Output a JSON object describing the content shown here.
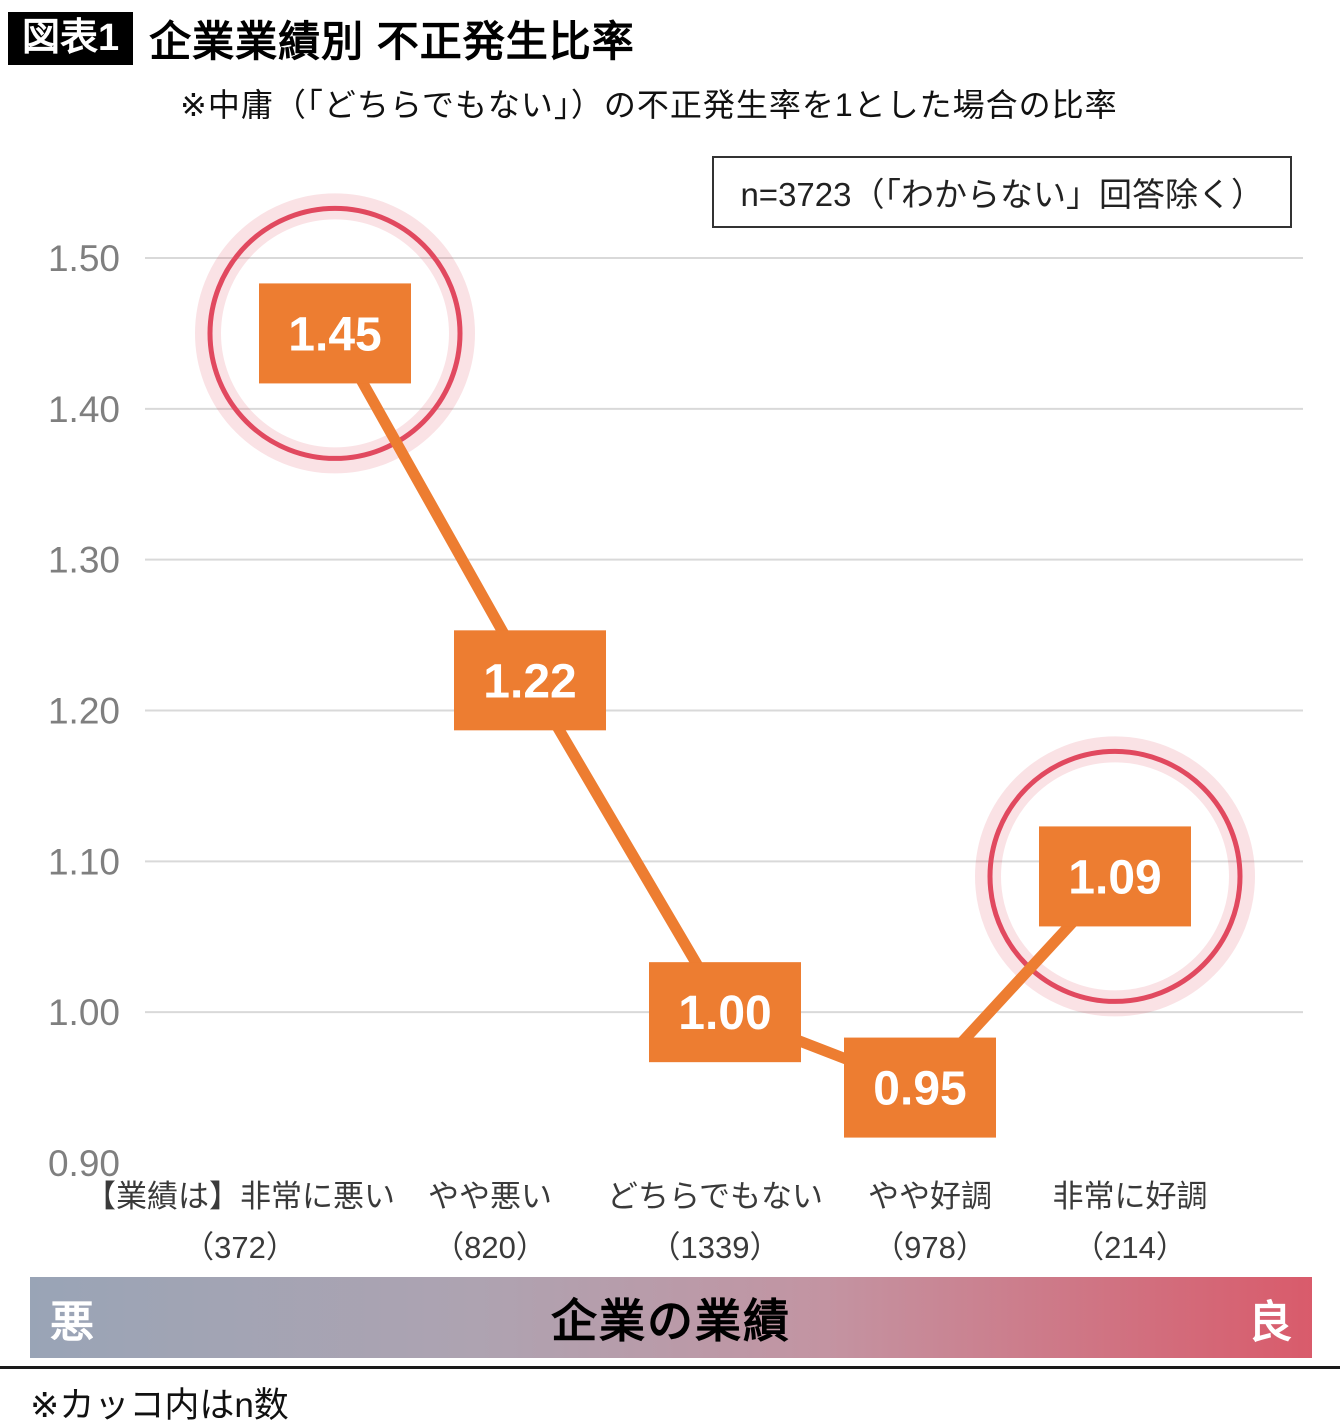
{
  "header": {
    "badge": "図表1",
    "title": "企業業績別 不正発生比率",
    "subtitle": "※中庸（「どちらでもない」）の不正発生率を1とした場合の比率"
  },
  "note_box": "n=3723（「わからない」回答除く）",
  "chart_data": {
    "type": "line",
    "title": "企業業績別 不正発生比率",
    "categories": [
      "【業績は】非常に悪い",
      "やや悪い",
      "どちらでもない",
      "やや好調",
      "非常に好調"
    ],
    "counts": [
      "（372）",
      "（820）",
      "（1339）",
      "（978）",
      "（214）"
    ],
    "values": [
      1.45,
      1.22,
      1.0,
      0.95,
      1.09
    ],
    "value_labels": [
      "1.45",
      "1.22",
      "1.00",
      "0.95",
      "1.09"
    ],
    "highlighted_indices": [
      0,
      4
    ],
    "ylim": [
      0.9,
      1.5
    ],
    "yticks": [
      0.9,
      1.0,
      1.1,
      1.2,
      1.3,
      1.4,
      1.5
    ],
    "grid": true,
    "legend": "none",
    "line_color": "#ED7D31",
    "label_box_color": "#ED7D31",
    "highlight_color": "#E1495F",
    "xlabel": "企業の業績",
    "ylabel": ""
  },
  "x_axis_bar": {
    "left_label": "悪",
    "center_label": "企業の業績",
    "right_label": "良",
    "gradient_left": "#99a4b6",
    "gradient_right": "#d95b6b"
  },
  "footer_note": "※カッコ内はn数"
}
